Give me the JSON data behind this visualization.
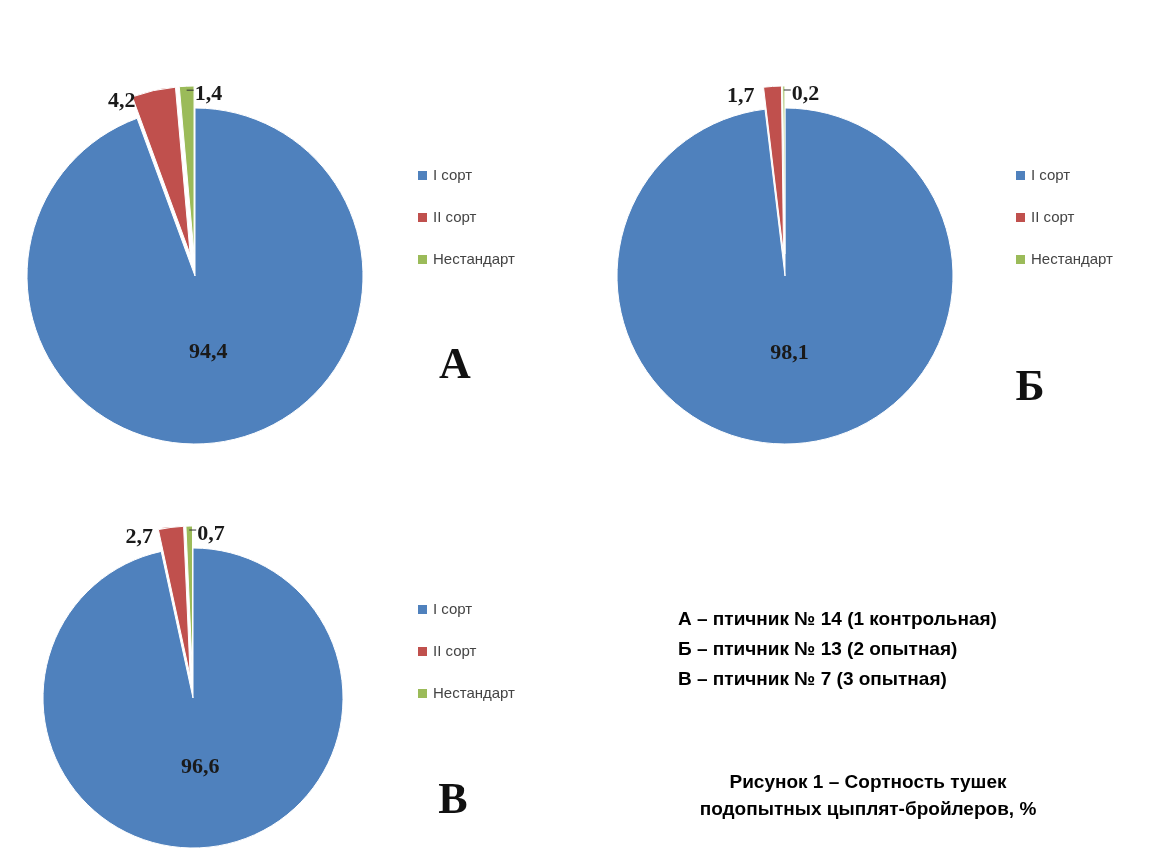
{
  "chart_data": [
    {
      "type": "pie",
      "title": "А",
      "categories": [
        "I сорт",
        "II сорт",
        "Нестандарт"
      ],
      "values": [
        94.4,
        4.2,
        1.4
      ],
      "value_labels": [
        "94,4",
        "4,2",
        "1,4"
      ],
      "colors": [
        "#4f81bd",
        "#c0504d",
        "#9bbb59"
      ],
      "legend": "right"
    },
    {
      "type": "pie",
      "title": "Б",
      "categories": [
        "I сорт",
        "II сорт",
        "Нестандарт"
      ],
      "values": [
        98.1,
        1.7,
        0.2
      ],
      "value_labels": [
        "98,1",
        "1,7",
        "0,2"
      ],
      "colors": [
        "#4f81bd",
        "#c0504d",
        "#9bbb59"
      ],
      "legend": "right"
    },
    {
      "type": "pie",
      "title": "В",
      "categories": [
        "I сорт",
        "II сорт",
        "Нестандарт"
      ],
      "values": [
        96.6,
        2.7,
        0.7
      ],
      "value_labels": [
        "96,6",
        "2,7",
        "0,7"
      ],
      "colors": [
        "#4f81bd",
        "#c0504d",
        "#9bbb59"
      ],
      "legend": "right"
    },
    {
      "type": "other",
      "annotations": [
        "А – птичник № 14 (1 контрольная)",
        "Б – птичник № 13 (2 опытная)",
        "В – птичник № 7 (3 опытная)",
        "Рисунок 1 – Сортность тушек подопытных цыплят-бройлеров, %"
      ]
    }
  ]
}
